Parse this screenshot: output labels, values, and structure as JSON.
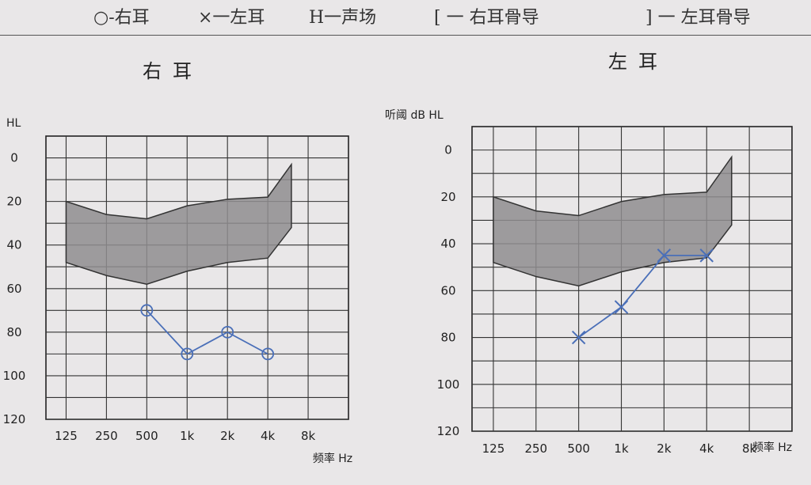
{
  "legend": {
    "right_air": "○-右耳",
    "left_air": "×一左耳",
    "sound_field": "H一声场",
    "right_bone": "[ 一 右耳骨导",
    "left_bone": "] 一 左耳骨导"
  },
  "chart_data": [
    {
      "type": "line",
      "title": "右耳",
      "ylabel": "HL",
      "xlabel": "频率 Hz",
      "categories": [
        "125",
        "250",
        "500",
        "1k",
        "2k",
        "4k",
        "8k"
      ],
      "y_ticks": [
        "0",
        "20",
        "40",
        "60",
        "80",
        "100",
        "120"
      ],
      "ylim": [
        120,
        0
      ],
      "y_inverted": true,
      "grid": true,
      "speech_banana": {
        "upper": [
          [
            125,
            20
          ],
          [
            250,
            26
          ],
          [
            500,
            28
          ],
          [
            1000,
            22
          ],
          [
            2000,
            19
          ],
          [
            4000,
            18
          ],
          [
            6000,
            3
          ]
        ],
        "lower": [
          [
            125,
            48
          ],
          [
            250,
            54
          ],
          [
            500,
            58
          ],
          [
            1000,
            52
          ],
          [
            2000,
            48
          ],
          [
            4000,
            46
          ],
          [
            6000,
            32
          ]
        ]
      },
      "series": [
        {
          "marker": "circle",
          "color": "#4a6fb8",
          "points": [
            [
              500,
              70
            ],
            [
              1000,
              90
            ],
            [
              2000,
              80
            ],
            [
              4000,
              90
            ]
          ]
        }
      ]
    },
    {
      "type": "line",
      "title": "左耳",
      "ylabel": "听阈 dB HL",
      "xlabel": "频率 Hz",
      "categories": [
        "125",
        "250",
        "500",
        "1k",
        "2k",
        "4k",
        "8k"
      ],
      "y_ticks": [
        "0",
        "20",
        "40",
        "60",
        "80",
        "100",
        "120"
      ],
      "ylim": [
        120,
        0
      ],
      "y_inverted": true,
      "grid": true,
      "speech_banana": {
        "upper": [
          [
            125,
            20
          ],
          [
            250,
            26
          ],
          [
            500,
            28
          ],
          [
            1000,
            22
          ],
          [
            2000,
            19
          ],
          [
            4000,
            18
          ],
          [
            6000,
            3
          ]
        ],
        "lower": [
          [
            125,
            48
          ],
          [
            250,
            54
          ],
          [
            500,
            58
          ],
          [
            1000,
            52
          ],
          [
            2000,
            48
          ],
          [
            4000,
            46
          ],
          [
            6000,
            32
          ]
        ]
      },
      "series": [
        {
          "marker": "x",
          "color": "#4a6fb8",
          "points": [
            [
              500,
              80
            ],
            [
              1000,
              67
            ],
            [
              2000,
              45
            ],
            [
              4000,
              45
            ]
          ]
        }
      ]
    }
  ]
}
